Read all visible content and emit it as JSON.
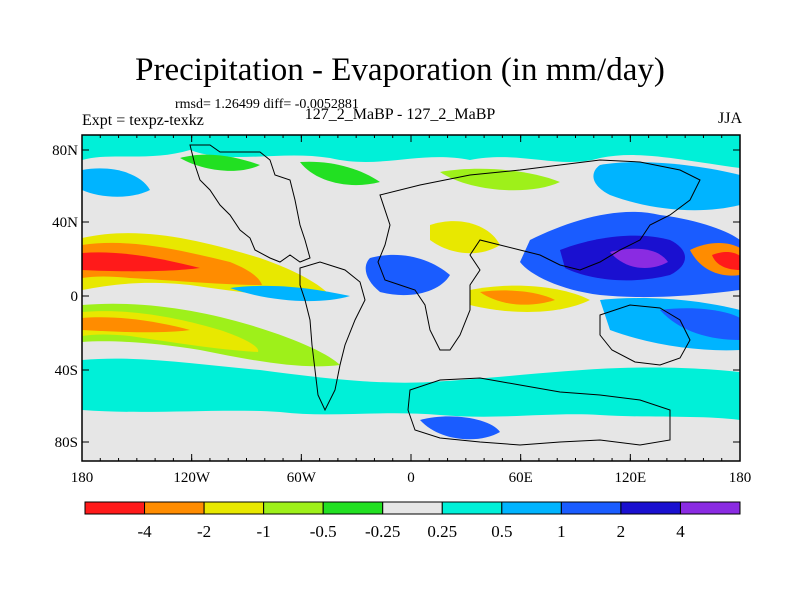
{
  "header": {
    "title": "Precipitation - Evaporation (in mm/day)",
    "stats": "rmsd= 1.26499 diff= -0.0052881",
    "expt": "Expt = texpz-texkz",
    "subtitle": "127_2_MaBP - 127_2_MaBP",
    "season": "JJA"
  },
  "axes": {
    "lat_ticks": [
      "80N",
      "40N",
      "0",
      "40S",
      "80S"
    ],
    "lon_ticks": [
      "180",
      "120W",
      "60W",
      "0",
      "60E",
      "120E",
      "180"
    ]
  },
  "colorbar": {
    "colors": [
      "#ff1a1a",
      "#ff8c00",
      "#e8e800",
      "#9ef01a",
      "#22e022",
      "#e6e6e6",
      "#00f0d8",
      "#00b4ff",
      "#1a5cff",
      "#1a10d0",
      "#8a2be2"
    ],
    "labels": [
      "-4",
      "-2",
      "-1",
      "-0.5",
      "-0.25",
      "0.25",
      "0.5",
      "1",
      "2",
      "4"
    ]
  },
  "map_features": {
    "continents": [
      "North America",
      "South America",
      "Africa-Eurasia",
      "Australia",
      "Antarctica"
    ]
  }
}
